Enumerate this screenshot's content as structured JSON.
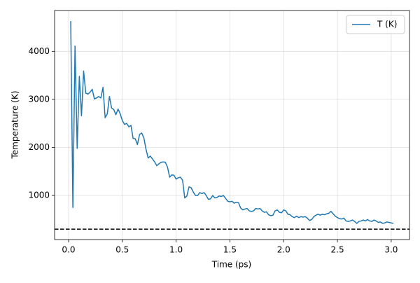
{
  "chart_data": {
    "type": "line",
    "xlabel": "Time (ps)",
    "ylabel": "Temperature (K)",
    "x": [
      0.02,
      0.04,
      0.06,
      0.08,
      0.1,
      0.12,
      0.14,
      0.16,
      0.18,
      0.2,
      0.22,
      0.24,
      0.26,
      0.28,
      0.3,
      0.32,
      0.34,
      0.36,
      0.38,
      0.4,
      0.42,
      0.44,
      0.46,
      0.48,
      0.5,
      0.52,
      0.54,
      0.56,
      0.58,
      0.6,
      0.62,
      0.64,
      0.66,
      0.68,
      0.7,
      0.72,
      0.74,
      0.76,
      0.78,
      0.8,
      0.82,
      0.84,
      0.86,
      0.88,
      0.9,
      0.92,
      0.94,
      0.96,
      0.98,
      1.0,
      1.02,
      1.04,
      1.06,
      1.08,
      1.1,
      1.12,
      1.14,
      1.16,
      1.18,
      1.2,
      1.22,
      1.24,
      1.26,
      1.28,
      1.3,
      1.32,
      1.34,
      1.36,
      1.38,
      1.4,
      1.42,
      1.44,
      1.46,
      1.48,
      1.5,
      1.52,
      1.54,
      1.56,
      1.58,
      1.6,
      1.62,
      1.64,
      1.66,
      1.68,
      1.7,
      1.72,
      1.74,
      1.76,
      1.78,
      1.8,
      1.82,
      1.84,
      1.86,
      1.88,
      1.9,
      1.92,
      1.94,
      1.96,
      1.98,
      2.0,
      2.02,
      2.04,
      2.06,
      2.08,
      2.1,
      2.12,
      2.14,
      2.16,
      2.18,
      2.2,
      2.22,
      2.24,
      2.26,
      2.28,
      2.3,
      2.32,
      2.34,
      2.36,
      2.38,
      2.4,
      2.42,
      2.44,
      2.46,
      2.48,
      2.5,
      2.52,
      2.54,
      2.56,
      2.58,
      2.6,
      2.62,
      2.64,
      2.66,
      2.68,
      2.7,
      2.72,
      2.74,
      2.76,
      2.78,
      2.8,
      2.82,
      2.84,
      2.86,
      2.88,
      2.9,
      2.92,
      2.94,
      2.96,
      2.98,
      3.0,
      3.02
    ],
    "series": [
      {
        "name": "T (K)",
        "color": "#1f77b4",
        "values": [
          4630,
          750,
          4110,
          1980,
          3480,
          2660,
          3590,
          3130,
          3110,
          3150,
          3210,
          3010,
          3030,
          3060,
          3030,
          3250,
          2620,
          2700,
          3060,
          2820,
          2790,
          2680,
          2800,
          2700,
          2560,
          2480,
          2500,
          2430,
          2460,
          2190,
          2180,
          2060,
          2270,
          2300,
          2200,
          1960,
          1780,
          1820,
          1760,
          1700,
          1620,
          1660,
          1690,
          1700,
          1690,
          1590,
          1380,
          1430,
          1420,
          1340,
          1370,
          1380,
          1320,
          950,
          990,
          1180,
          1160,
          1070,
          1000,
          1000,
          1060,
          1040,
          1060,
          1000,
          920,
          930,
          1000,
          950,
          960,
          990,
          980,
          1000,
          940,
          880,
          870,
          880,
          840,
          860,
          850,
          740,
          700,
          720,
          730,
          680,
          670,
          680,
          730,
          720,
          730,
          680,
          650,
          660,
          600,
          580,
          590,
          680,
          700,
          650,
          640,
          700,
          680,
          610,
          600,
          560,
          540,
          570,
          540,
          560,
          550,
          560,
          530,
          480,
          500,
          560,
          590,
          610,
          590,
          610,
          600,
          620,
          630,
          670,
          620,
          570,
          540,
          520,
          510,
          530,
          470,
          460,
          470,
          490,
          460,
          420,
          460,
          470,
          490,
          470,
          500,
          470,
          460,
          490,
          470,
          440,
          450,
          420,
          430,
          450,
          440,
          430,
          420
        ]
      }
    ],
    "hline": 300,
    "xlim": [
      -0.13,
      3.17
    ],
    "ylim": [
      83,
      4850
    ],
    "xticks": [
      {
        "value": 0,
        "label": "0.0"
      },
      0.5,
      {
        "value": 1,
        "label": "1.0"
      },
      1.5,
      {
        "value": 2,
        "label": "2.0"
      },
      2.5,
      {
        "value": 3,
        "label": "3.0"
      }
    ],
    "yticks": [
      1000,
      2000,
      3000,
      4000
    ],
    "grid": true,
    "legend": "upper right"
  }
}
